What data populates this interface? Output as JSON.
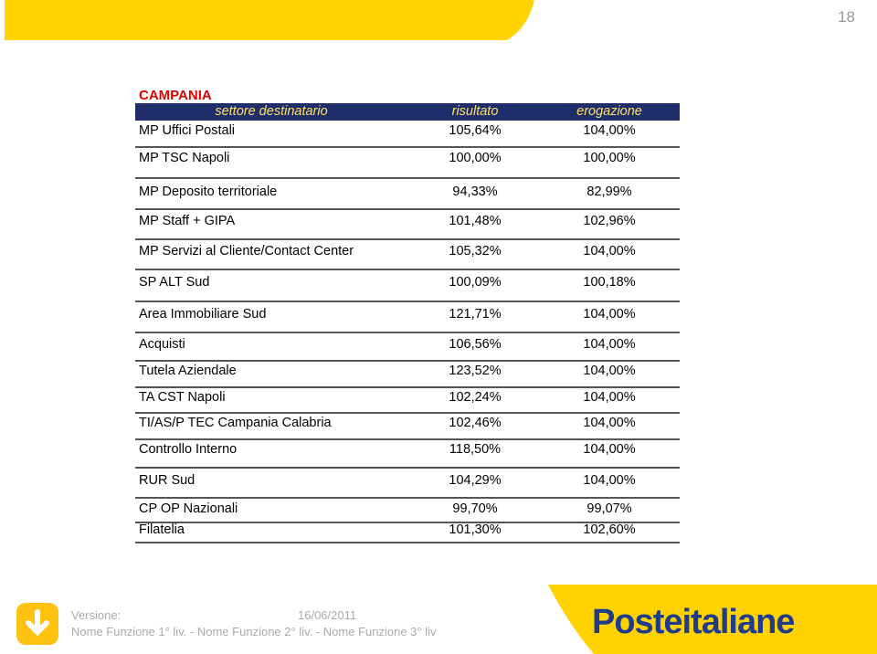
{
  "page_number": "18",
  "table": {
    "title": "CAMPANIA",
    "columns": [
      "settore destinatario",
      "risultato",
      "erogazione"
    ],
    "rows": [
      [
        "MP Uffici Postali",
        "105,64%",
        "104,00%"
      ],
      [
        "MP TSC Napoli",
        "100,00%",
        "100,00%"
      ],
      [
        "MP Deposito territoriale",
        "94,33%",
        "82,99%"
      ],
      [
        "MP Staff + GIPA",
        "101,48%",
        "102,96%"
      ],
      [
        "MP Servizi al Cliente/Contact Center",
        "105,32%",
        "104,00%"
      ],
      [
        "SP ALT Sud",
        "100,09%",
        "100,18%"
      ],
      [
        "Area Immobiliare Sud",
        "121,71%",
        "104,00%"
      ],
      [
        "Acquisti",
        "106,56%",
        "104,00%"
      ],
      [
        "Tutela Aziendale",
        "123,52%",
        "104,00%"
      ],
      [
        "TA CST Napoli",
        "102,24%",
        "104,00%"
      ],
      [
        "TI/AS/P TEC Campania Calabria",
        "102,46%",
        "104,00%"
      ],
      [
        "Controllo Interno",
        "118,50%",
        "104,00%"
      ],
      [
        "RUR Sud",
        "104,29%",
        "104,00%"
      ],
      [
        "CP OP Nazionali",
        "99,70%",
        "99,07%"
      ],
      [
        "Filatelia",
        "101,30%",
        "102,60%"
      ]
    ]
  },
  "footer": {
    "version_label": "Versione:",
    "date": "16/06/2011",
    "breadcrumb": "Nome Funzione 1° liv. - Nome Funzione 2° liv. - Nome Funzione 3° liv",
    "logo_part1": "Poste",
    "logo_part2": "italiane"
  }
}
